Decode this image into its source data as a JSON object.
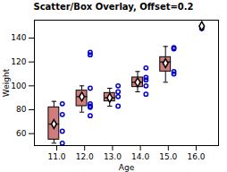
{
  "chart_data": {
    "type": "box",
    "title": "Scatter/Box Overlay, Offset=0.2",
    "xlabel": "Age",
    "ylabel": "Weight",
    "xlim": [
      10.2,
      16.8
    ],
    "ylim": [
      50,
      155
    ],
    "xticks": [
      11,
      12,
      13,
      14,
      15,
      16
    ],
    "yticks": [
      60,
      80,
      100,
      120,
      140
    ],
    "grid": false,
    "boxes": {
      "x": [
        11,
        12,
        13,
        14,
        15
      ],
      "whisker_low": [
        52,
        78,
        83,
        95,
        103
      ],
      "q1": [
        55,
        83,
        87,
        99,
        112
      ],
      "median": [
        68,
        91,
        90,
        103,
        120
      ],
      "q3": [
        82,
        96,
        94,
        107,
        124
      ],
      "whisker_high": [
        87,
        100,
        98,
        112,
        133
      ],
      "color": "#c0504d"
    },
    "scatter": {
      "x": [
        11,
        11,
        11,
        11,
        12,
        12,
        12,
        12,
        12,
        12,
        12,
        13,
        13,
        13,
        13,
        14,
        14,
        14,
        14,
        14,
        15,
        15,
        15,
        15,
        16,
        16
      ],
      "values": [
        52,
        62,
        76,
        85,
        75,
        82,
        83,
        85,
        98,
        126,
        128,
        83,
        91,
        95,
        100,
        93,
        100,
        105,
        107,
        115,
        110,
        112,
        131,
        132,
        148,
        150
      ],
      "color": "#0000cc",
      "marker": "circle"
    },
    "means": {
      "x": [
        11,
        12,
        13,
        14,
        15,
        16
      ],
      "values": [
        68,
        91,
        90,
        103,
        119,
        150
      ],
      "marker": "diamond"
    }
  }
}
